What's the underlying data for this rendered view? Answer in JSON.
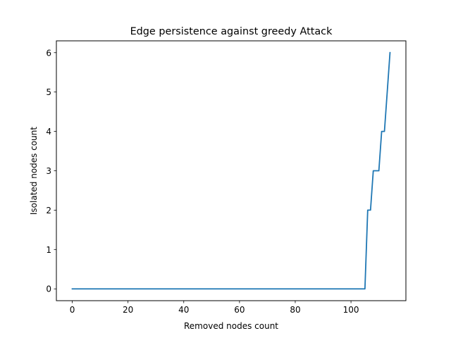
{
  "chart_data": {
    "type": "line",
    "title": "Edge persistence against greedy Attack",
    "xlabel": "Removed nodes count",
    "ylabel": "Isolated nodes count",
    "xlim": [
      -5.7,
      119.7
    ],
    "ylim": [
      -0.3,
      6.3
    ],
    "xticks": [
      0,
      20,
      40,
      60,
      80,
      100
    ],
    "yticks": [
      0,
      1,
      2,
      3,
      4,
      5,
      6
    ],
    "grid": false,
    "legend": "none",
    "series": [
      {
        "color": "#1f77b4",
        "x": [
          0,
          105,
          106,
          107,
          108,
          110,
          111,
          112,
          113,
          114
        ],
        "y": [
          0,
          0,
          2,
          2,
          3,
          3,
          4,
          4,
          5,
          6
        ]
      }
    ]
  }
}
